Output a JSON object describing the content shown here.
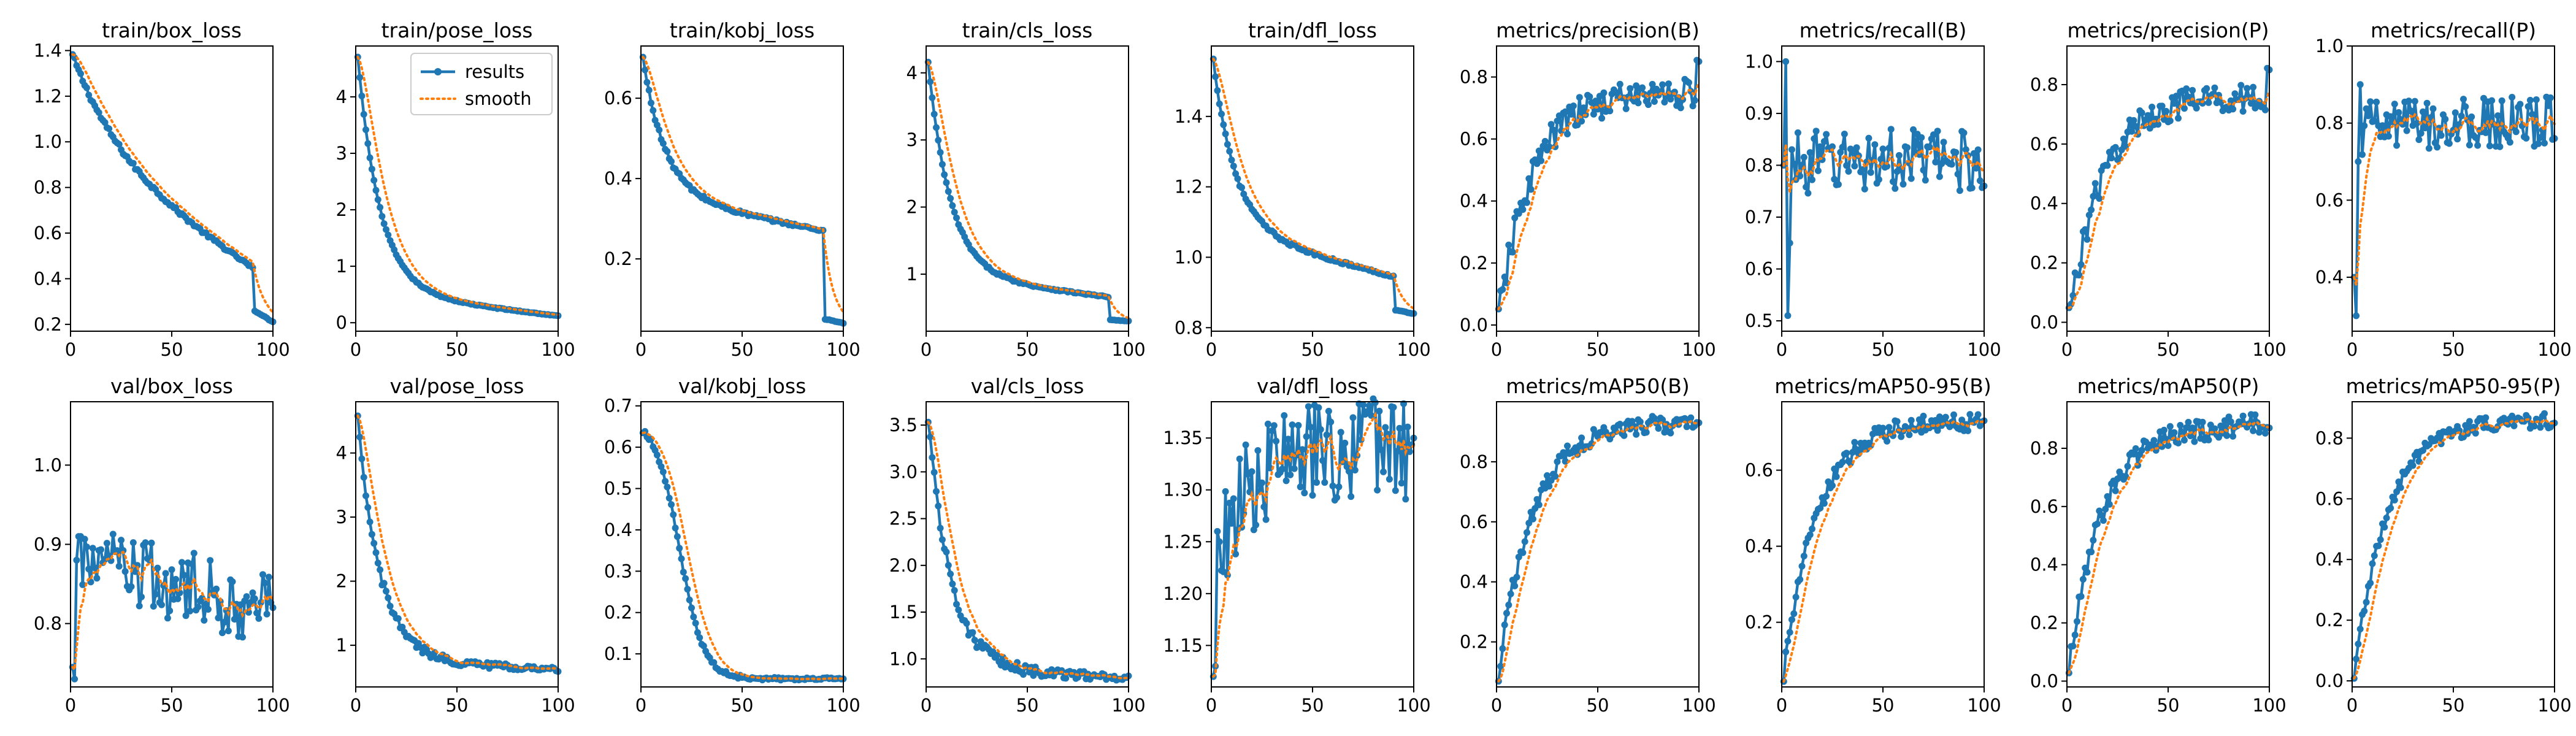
{
  "chart_data": [
    {
      "type": "line",
      "title": "train/box_loss",
      "xlim": [
        0,
        100
      ],
      "ylim": [
        0.17,
        1.42
      ],
      "xticks": [
        0,
        50,
        100
      ],
      "yticks": [
        0.2,
        0.4,
        0.6,
        0.8,
        1.0,
        1.2,
        1.4
      ],
      "ytick_labels": [
        "0.2",
        "0.4",
        "0.6",
        "0.8",
        "1.0",
        "1.2",
        "1.4"
      ],
      "style": "smooth",
      "decay": [
        1.38,
        0.93,
        0.38
      ],
      "noise": 0.012,
      "drop": {
        "at": 90,
        "to": 0.26,
        "end": 0.21
      }
    },
    {
      "type": "line",
      "title": "train/pose_loss",
      "xlim": [
        0,
        100
      ],
      "ylim": [
        -0.15,
        4.9
      ],
      "xticks": [
        0,
        50,
        100
      ],
      "yticks": [
        0,
        1,
        2,
        3,
        4
      ],
      "ytick_labels": [
        "0",
        "1",
        "2",
        "3",
        "4"
      ],
      "style": "smooth",
      "decay": [
        4.7,
        0.55,
        0.12
      ],
      "noise": 0.015,
      "legend": {
        "entries": [
          "results",
          "smooth"
        ],
        "position": "upper right"
      }
    },
    {
      "type": "line",
      "title": "train/kobj_loss",
      "xlim": [
        0,
        100
      ],
      "ylim": [
        0.02,
        0.73
      ],
      "xticks": [
        0,
        50,
        100
      ],
      "yticks": [
        0.2,
        0.4,
        0.6
      ],
      "ytick_labels": [
        "0.2",
        "0.4",
        "0.6"
      ],
      "style": "smooth",
      "decay": [
        0.7,
        0.36,
        0.26
      ],
      "noise": 0.006,
      "drop": {
        "at": 90,
        "to": 0.05,
        "end": 0.04
      }
    },
    {
      "type": "line",
      "title": "train/cls_loss",
      "xlim": [
        0,
        100
      ],
      "ylim": [
        0.15,
        4.4
      ],
      "xticks": [
        0,
        50,
        100
      ],
      "yticks": [
        1,
        2,
        3,
        4
      ],
      "ytick_labels": [
        "1",
        "2",
        "3",
        "4"
      ],
      "style": "smooth",
      "decay": [
        4.15,
        1.0,
        0.62
      ],
      "noise": 0.02,
      "drop": {
        "at": 90,
        "to": 0.32,
        "end": 0.3
      }
    },
    {
      "type": "line",
      "title": "train/dfl_loss",
      "xlim": [
        0,
        100
      ],
      "ylim": [
        0.79,
        1.6
      ],
      "xticks": [
        0,
        50,
        100
      ],
      "yticks": [
        0.8,
        1.0,
        1.2,
        1.4
      ],
      "ytick_labels": [
        "0.8",
        "1.0",
        "1.2",
        "1.4"
      ],
      "style": "smooth",
      "decay": [
        1.56,
        1.08,
        0.93
      ],
      "noise": 0.006,
      "drop": {
        "at": 90,
        "to": 0.85,
        "end": 0.84
      }
    },
    {
      "type": "line",
      "title": "metrics/precision(B)",
      "xlim": [
        0,
        100
      ],
      "ylim": [
        -0.02,
        0.9
      ],
      "xticks": [
        0,
        50,
        100
      ],
      "yticks": [
        0.0,
        0.2,
        0.4,
        0.6,
        0.8
      ],
      "ytick_labels": [
        "0.0",
        "0.2",
        "0.4",
        "0.6",
        "0.8"
      ],
      "style": "rise",
      "rise": [
        0.02,
        0.75
      ],
      "noise": 0.05,
      "end": 0.85
    },
    {
      "type": "line",
      "title": "metrics/recall(B)",
      "xlim": [
        0,
        100
      ],
      "ylim": [
        0.48,
        1.03
      ],
      "xticks": [
        0,
        50,
        100
      ],
      "yticks": [
        0.5,
        0.6,
        0.7,
        0.8,
        0.9,
        1.0
      ],
      "ytick_labels": [
        "0.5",
        "0.6",
        "0.7",
        "0.8",
        "0.9",
        "1.0"
      ],
      "style": "flat",
      "rise": [
        0.8,
        0.81
      ],
      "noise": 0.06,
      "first": [
        0.8,
        1.0,
        0.51,
        0.65
      ],
      "end": 0.76
    },
    {
      "type": "line",
      "title": "metrics/precision(P)",
      "xlim": [
        0,
        100
      ],
      "ylim": [
        -0.03,
        0.93
      ],
      "xticks": [
        0,
        50,
        100
      ],
      "yticks": [
        0.0,
        0.2,
        0.4,
        0.6,
        0.8
      ],
      "ytick_labels": [
        "0.0",
        "0.2",
        "0.4",
        "0.6",
        "0.8"
      ],
      "style": "rise",
      "rise": [
        0.01,
        0.76
      ],
      "noise": 0.05,
      "end": 0.85
    },
    {
      "type": "line",
      "title": "metrics/recall(P)",
      "xlim": [
        0,
        100
      ],
      "ylim": [
        0.26,
        1.0
      ],
      "xticks": [
        0,
        50,
        100
      ],
      "yticks": [
        0.4,
        0.6,
        0.8,
        1.0
      ],
      "ytick_labels": [
        "0.4",
        "0.6",
        "0.8",
        "1.0"
      ],
      "style": "flat",
      "rise": [
        0.78,
        0.8
      ],
      "noise": 0.07,
      "first": [
        0.4,
        0.3,
        0.7,
        0.9
      ],
      "end": 0.76
    },
    {
      "type": "line",
      "title": "val/box_loss",
      "xlim": [
        0,
        100
      ],
      "ylim": [
        0.72,
        1.08
      ],
      "xticks": [
        0,
        50,
        100
      ],
      "yticks": [
        0.8,
        0.9,
        1.0
      ],
      "ytick_labels": [
        "0.8",
        "0.9",
        "1.0"
      ],
      "style": "noisy",
      "decay": [
        0.9,
        0.86,
        0.82
      ],
      "noise": 0.05,
      "first": [
        0.745,
        0.73,
        0.88,
        0.91
      ],
      "end": 0.82
    },
    {
      "type": "line",
      "title": "val/pose_loss",
      "xlim": [
        0,
        100
      ],
      "ylim": [
        0.35,
        4.8
      ],
      "xticks": [
        0,
        50,
        100
      ],
      "yticks": [
        1,
        2,
        3,
        4
      ],
      "ytick_labels": [
        "1",
        "2",
        "3",
        "4"
      ],
      "style": "smooth",
      "decay": [
        4.5,
        0.78,
        0.62
      ],
      "noise": 0.08
    },
    {
      "type": "line",
      "title": "val/kobj_loss",
      "xlim": [
        0,
        100
      ],
      "ylim": [
        0.02,
        0.71
      ],
      "xticks": [
        0,
        50,
        100
      ],
      "yticks": [
        0.1,
        0.2,
        0.3,
        0.4,
        0.5,
        0.6,
        0.7
      ],
      "ytick_labels": [
        "0.1",
        "0.2",
        "0.3",
        "0.4",
        "0.5",
        "0.6",
        "0.7"
      ],
      "style": "smooth",
      "decay": [
        0.67,
        0.1,
        0.04
      ],
      "noise": 0.006,
      "shape": "sigmoidal"
    },
    {
      "type": "line",
      "title": "val/cls_loss",
      "xlim": [
        0,
        100
      ],
      "ylim": [
        0.7,
        3.75
      ],
      "xticks": [
        0,
        50,
        100
      ],
      "yticks": [
        1.0,
        1.5,
        2.0,
        2.5,
        3.0,
        3.5
      ],
      "ytick_labels": [
        "1.0",
        "1.5",
        "2.0",
        "2.5",
        "3.0",
        "3.5"
      ],
      "style": "smooth",
      "decay": [
        3.6,
        0.9,
        0.8
      ],
      "noise": 0.08
    },
    {
      "type": "line",
      "title": "val/dfl_loss",
      "xlim": [
        0,
        100
      ],
      "ylim": [
        1.11,
        1.385
      ],
      "xticks": [
        0,
        50,
        100
      ],
      "yticks": [
        1.15,
        1.2,
        1.25,
        1.3,
        1.35
      ],
      "ytick_labels": [
        "1.15",
        "1.20",
        "1.25",
        "1.30",
        "1.35"
      ],
      "style": "noisy",
      "rise": [
        1.22,
        1.34
      ],
      "noise": 0.05,
      "first": [
        1.12,
        1.13,
        1.26,
        1.25
      ],
      "end": 1.35
    },
    {
      "type": "line",
      "title": "metrics/mAP50(B)",
      "xlim": [
        0,
        100
      ],
      "ylim": [
        0.05,
        1.0
      ],
      "xticks": [
        0,
        50,
        100
      ],
      "yticks": [
        0.2,
        0.4,
        0.6,
        0.8
      ],
      "ytick_labels": [
        "0.2",
        "0.4",
        "0.6",
        "0.8"
      ],
      "style": "rise",
      "rise": [
        0.09,
        0.93
      ],
      "noise": 0.03,
      "end": 0.93
    },
    {
      "type": "line",
      "title": "metrics/mAP50-95(B)",
      "xlim": [
        0,
        100
      ],
      "ylim": [
        0.03,
        0.78
      ],
      "xticks": [
        0,
        50,
        100
      ],
      "yticks": [
        0.2,
        0.4,
        0.6
      ],
      "ytick_labels": [
        "0.2",
        "0.4",
        "0.6"
      ],
      "style": "rise",
      "rise": [
        0.06,
        0.73
      ],
      "noise": 0.025,
      "end": 0.73
    },
    {
      "type": "line",
      "title": "metrics/mAP50(P)",
      "xlim": [
        0,
        100
      ],
      "ylim": [
        -0.02,
        0.96
      ],
      "xticks": [
        0,
        50,
        100
      ],
      "yticks": [
        0.0,
        0.2,
        0.4,
        0.6,
        0.8
      ],
      "ytick_labels": [
        "0.0",
        "0.2",
        "0.4",
        "0.6",
        "0.8"
      ],
      "style": "rise",
      "rise": [
        0.05,
        0.88
      ],
      "noise": 0.04,
      "end": 0.87
    },
    {
      "type": "line",
      "title": "metrics/mAP50-95(P)",
      "xlim": [
        0,
        100
      ],
      "ylim": [
        -0.02,
        0.92
      ],
      "xticks": [
        0,
        50,
        100
      ],
      "yticks": [
        0.0,
        0.2,
        0.4,
        0.6,
        0.8
      ],
      "ytick_labels": [
        "0.0",
        "0.2",
        "0.4",
        "0.6",
        "0.8"
      ],
      "style": "rise",
      "rise": [
        0.02,
        0.86
      ],
      "noise": 0.025,
      "end": 0.85
    }
  ],
  "series_names": [
    "results",
    "smooth"
  ],
  "colors": {
    "results": "#1f77b4",
    "smooth": "#ff7f0e",
    "axes": "#000000",
    "background": "#ffffff"
  }
}
